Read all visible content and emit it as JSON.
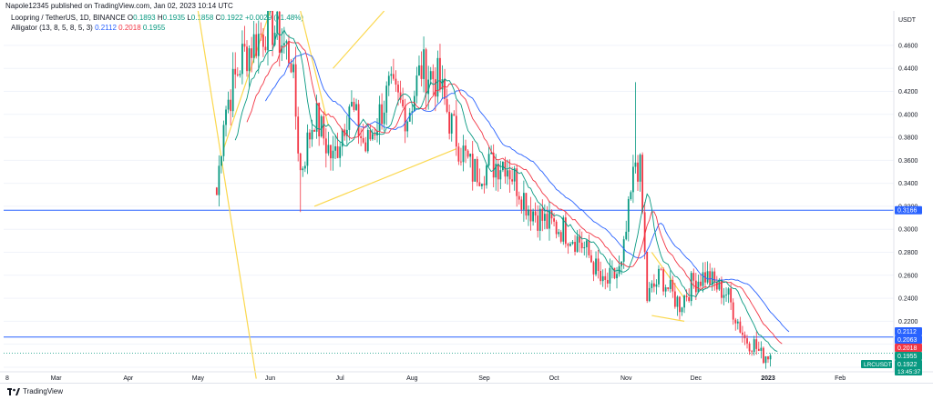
{
  "header": {
    "published": "Napole12345 published on TradingView.com, Jan 02, 2023 10:14 UTC"
  },
  "legend": {
    "symbol": "Loopring / TetherUS, 1D, BINANCE",
    "o_label": "O",
    "o": "0.1893",
    "h_label": "H",
    "h": "0.1935",
    "l_label": "L",
    "l": "0.1858",
    "c_label": "C",
    "c": "0.1922",
    "change": "+0.0029 (+1.48%)",
    "indicator": "Alligator (13, 8, 5, 8, 5, 3)",
    "jaw": "0.2112",
    "teeth": "0.2018",
    "lips": "0.1955"
  },
  "footer": {
    "brand": "TradingView"
  },
  "colors": {
    "up": "#089981",
    "down": "#f23645",
    "jaw": "#2962ff",
    "teeth": "#f23645",
    "lips": "#089981",
    "drawing": "#fbd84f",
    "hline": "#2962ff"
  },
  "chart_data": {
    "type": "candlestick",
    "currency": "USDT",
    "ylim": [
      0.176,
      0.49
    ],
    "y_ticks": [
      "0.1800",
      "0.2000",
      "0.2200",
      "0.2400",
      "0.2600",
      "0.2800",
      "0.3000",
      "0.3200",
      "0.3400",
      "0.3600",
      "0.3800",
      "0.4000",
      "0.4200",
      "0.4400",
      "0.4600"
    ],
    "x_ticks": [
      "8",
      "Mar",
      "Apr",
      "May",
      "Jun",
      "Jul",
      "Aug",
      "Sep",
      "Oct",
      "Nov",
      "Dec",
      "2023",
      "Feb"
    ],
    "horizontal_lines": [
      0.3166,
      0.2063
    ],
    "price_badges": [
      {
        "value": "0.3166",
        "color": "#2962ff"
      },
      {
        "value": "0.2112",
        "color": "#2962ff"
      },
      {
        "value": "0.2063",
        "color": "#2962ff"
      },
      {
        "value": "0.2018",
        "color": "#f23645"
      },
      {
        "value": "0.1955",
        "color": "#089981"
      },
      {
        "value": "0.1922",
        "color": "#089981",
        "label": "LRCUSDT",
        "sub": "13:45:37"
      }
    ],
    "close_anchors": [
      [
        "2022-05-09",
        0.33
      ],
      [
        "2022-05-12",
        0.4
      ],
      [
        "2022-05-20",
        0.45
      ],
      [
        "2022-06-01",
        0.48
      ],
      [
        "2022-06-10",
        0.45
      ],
      [
        "2022-06-14",
        0.35
      ],
      [
        "2022-06-20",
        0.4
      ],
      [
        "2022-06-28",
        0.36
      ],
      [
        "2022-07-05",
        0.41
      ],
      [
        "2022-07-12",
        0.37
      ],
      [
        "2022-07-22",
        0.42
      ],
      [
        "2022-07-30",
        0.4
      ],
      [
        "2022-08-05",
        0.44
      ],
      [
        "2022-08-12",
        0.43
      ],
      [
        "2022-08-18",
        0.39
      ],
      [
        "2022-08-22",
        0.37
      ],
      [
        "2022-08-27",
        0.35
      ],
      [
        "2022-09-03",
        0.355
      ],
      [
        "2022-09-10",
        0.36
      ],
      [
        "2022-09-15",
        0.34
      ],
      [
        "2022-09-20",
        0.32
      ],
      [
        "2022-09-28",
        0.305
      ],
      [
        "2022-10-05",
        0.3
      ],
      [
        "2022-10-12",
        0.29
      ],
      [
        "2022-10-18",
        0.27
      ],
      [
        "2022-10-22",
        0.25
      ],
      [
        "2022-10-30",
        0.265
      ],
      [
        "2022-11-05",
        0.36
      ],
      [
        "2022-11-07",
        0.35
      ],
      [
        "2022-11-10",
        0.24
      ],
      [
        "2022-11-16",
        0.26
      ],
      [
        "2022-11-20",
        0.245
      ],
      [
        "2022-11-24",
        0.235
      ],
      [
        "2022-11-30",
        0.255
      ],
      [
        "2022-12-05",
        0.26
      ],
      [
        "2022-12-10",
        0.25
      ],
      [
        "2022-12-14",
        0.245
      ],
      [
        "2022-12-17",
        0.23
      ],
      [
        "2022-12-22",
        0.205
      ],
      [
        "2022-12-26",
        0.2
      ],
      [
        "2022-12-29",
        0.19
      ],
      [
        "2023-01-02",
        0.1922
      ]
    ],
    "spikes": [
      [
        "2022-11-05",
        0.428
      ],
      [
        "2022-05-09",
        0.33
      ],
      [
        "2022-06-14",
        0.315
      ]
    ]
  }
}
